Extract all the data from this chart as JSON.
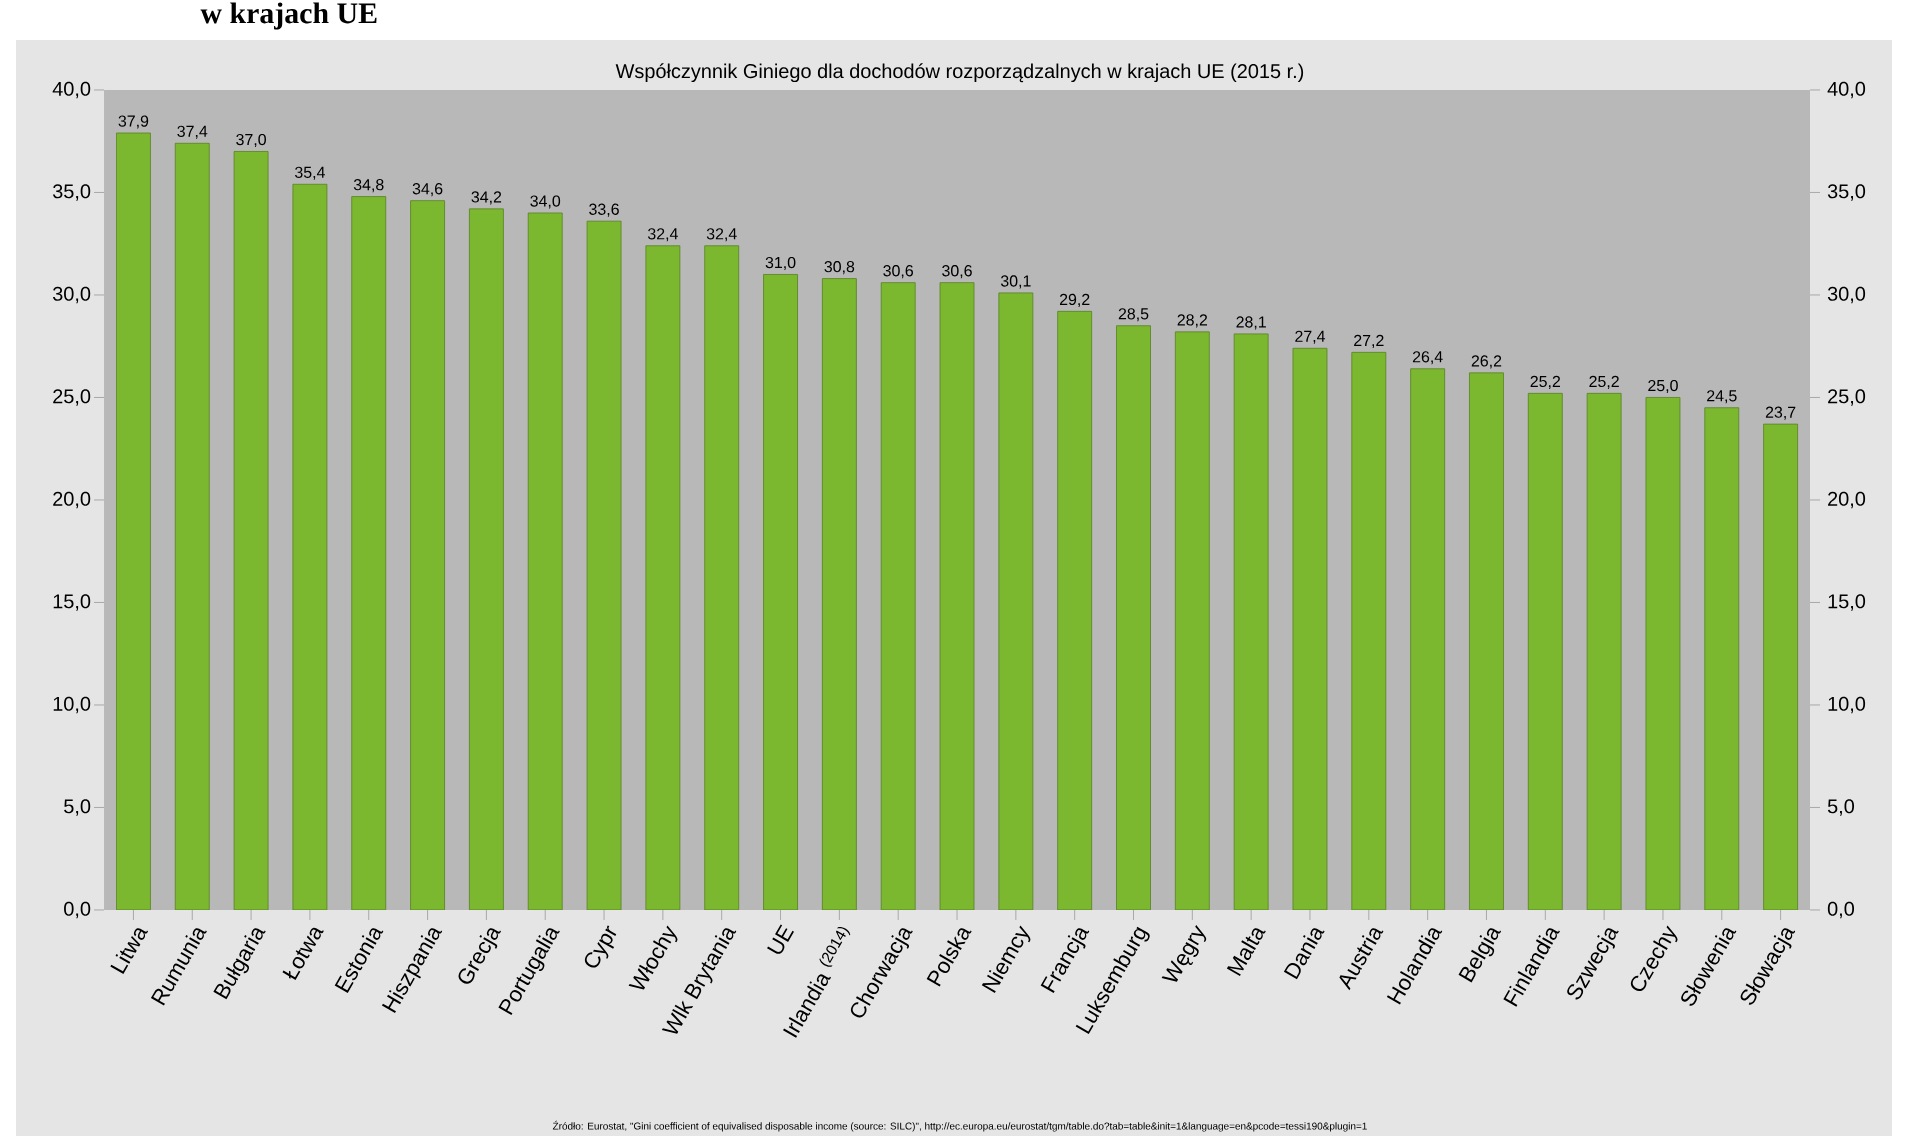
{
  "chart_data": {
    "type": "bar",
    "title": "Współczynnik Giniego dla dochodów rozporządzalnych w krajach UE (2015 r.)",
    "annotations": [
      "w krajach UE",
      "Źródło: Eurostat,  \"Gini coefficient of equivalised disposable income (source: SILC)\", http://ec.europa.eu/eurostat/tgm/table.do?tab=table&init=1&language=en&pcode=tessi190&plugin=1"
    ],
    "categories": [
      "Litwa",
      "Rumunia",
      "Bułgaria",
      "Łotwa",
      "Estonia",
      "Hiszpania",
      "Grecja",
      "Portugalia",
      "Cypr",
      "Włochy",
      "Wlk Brytania",
      "UE",
      "Irlandia $^{(2014)}$",
      "Chorwacja",
      "Polska",
      "Niemcy",
      "Francja",
      "Luksemburg",
      "Węgry",
      "Malta",
      "Dania",
      "Austria",
      "Holandia",
      "Belgia",
      "Finlandia",
      "Szwecja",
      "Czechy",
      "Słowenia",
      "Słowacja"
    ],
    "values": [
      37.9,
      37.4,
      37.0,
      35.4,
      34.8,
      34.6,
      34.2,
      34.0,
      33.6,
      32.4,
      32.4,
      31.0,
      30.8,
      30.6,
      30.6,
      30.1,
      29.2,
      28.5,
      28.2,
      28.1,
      27.4,
      27.2,
      26.4,
      26.2,
      25.2,
      25.2,
      25.0,
      24.5,
      23.7
    ],
    "value_labels": [
      "37,9",
      "37,4",
      "37,0",
      "35,4",
      "34,8",
      "34,6",
      "34,2",
      "34,0",
      "33,6",
      "32,4",
      "32,4",
      "31,0",
      "30,8",
      "30,6",
      "30,6",
      "30,1",
      "29,2",
      "28,5",
      "28,2",
      "28,1",
      "27,4",
      "27,2",
      "26,4",
      "26,2",
      "25,2",
      "25,2",
      "25,0",
      "24,5",
      "23,7"
    ],
    "color": "#7cb82f",
    "ylim": [
      0,
      40
    ],
    "yticks": [
      {
        "value": 0,
        "label": "0,0"
      },
      {
        "value": 5,
        "label": "5,0"
      },
      {
        "value": 10,
        "label": "10,0"
      },
      {
        "value": 15,
        "label": "15,0"
      },
      {
        "value": 20,
        "label": "20,0"
      },
      {
        "value": 25,
        "label": "25,0"
      },
      {
        "value": 30,
        "label": "30,0"
      },
      {
        "value": 35,
        "label": "35,0"
      },
      {
        "value": 40,
        "label": "40,0"
      }
    ],
    "y2lim": [
      0,
      40
    ],
    "y2ticks": [
      {
        "value": 0,
        "label": "0,0"
      },
      {
        "value": 5,
        "label": "5,0"
      },
      {
        "value": 10,
        "label": "10,0"
      },
      {
        "value": 15,
        "label": "15,0"
      },
      {
        "value": 20,
        "label": "20,0"
      },
      {
        "value": 25,
        "label": "25,0"
      },
      {
        "value": 30,
        "label": "30,0"
      },
      {
        "value": 35,
        "label": "35,0"
      },
      {
        "value": 40,
        "label": "40,0"
      }
    ],
    "grid": false
  }
}
